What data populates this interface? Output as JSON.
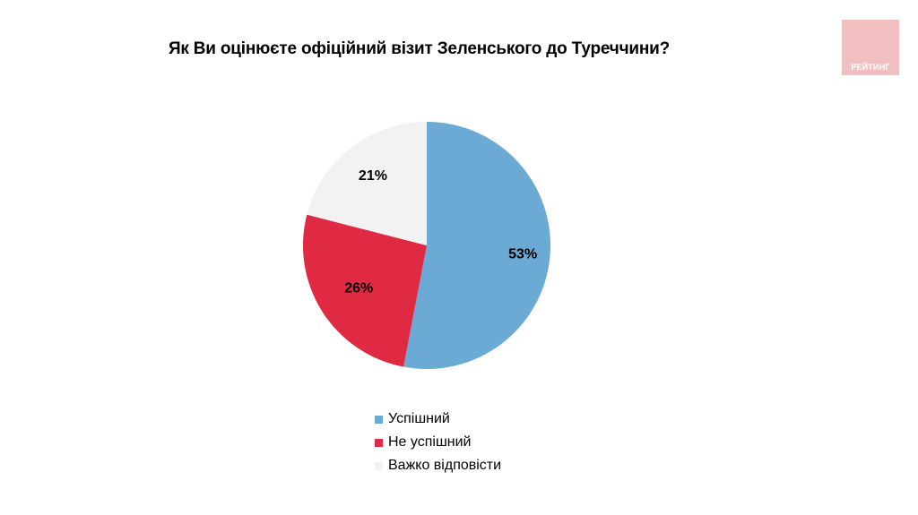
{
  "title": "Як Ви оцінюєте офіційний візит Зеленського до Туреччини?",
  "logo": {
    "text": "РЕЙТИНГ",
    "color": "#f2bfc1"
  },
  "chart_data": {
    "type": "pie",
    "title": "Як Ви оцінюєте офіційний візит Зеленського до Туреччини?",
    "categories": [
      "Успішний",
      "Не успішний",
      "Важко відповісти"
    ],
    "values": [
      53,
      26,
      21
    ],
    "labels": [
      "53%",
      "26%",
      "21%"
    ],
    "colors": [
      "#6aaad5",
      "#e02a43",
      "#f2f2f2"
    ],
    "start_angle": "12 o'clock, clockwise",
    "legend_position": "bottom"
  }
}
